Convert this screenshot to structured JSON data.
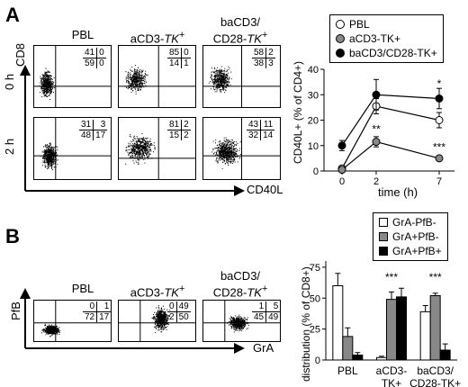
{
  "panelA": {
    "letter": "A",
    "samples": [
      "PBL",
      "aCD3-TK+",
      "baCD3/CD28-TK+"
    ],
    "sample_labels": {
      "pbl": "PBL",
      "acd3_main": "aCD3-",
      "acd3_tk": "TK",
      "sup": "+",
      "bacd3_line1": "baCD3/",
      "bacd3_line2": "CD28-",
      "bacd3_tk": "TK"
    },
    "rows": [
      "0 h",
      "2 h"
    ],
    "y_axis": "CD8",
    "x_axis": "CD40L",
    "quadrants": {
      "0h": [
        {
          "ul": "41",
          "ur": "0",
          "ll": "59",
          "lr": "0"
        },
        {
          "ul": "85",
          "ur": "0",
          "ll": "14",
          "lr": "1"
        },
        {
          "ul": "58",
          "ur": "2",
          "ll": "38",
          "lr": "3"
        }
      ],
      "2h": [
        {
          "ul": "31",
          "ur": "3",
          "ll": "48",
          "lr": "17"
        },
        {
          "ul": "81",
          "ur": "2",
          "ll": "15",
          "lr": "2"
        },
        {
          "ul": "43",
          "ur": "11",
          "ll": "32",
          "lr": "14"
        }
      ]
    }
  },
  "panelB": {
    "letter": "B",
    "y_axis": "PfB",
    "x_axis": "GrA",
    "quadrants": [
      {
        "ul": "0",
        "ur": "1",
        "ll": "72",
        "lr": "17"
      },
      {
        "ul": "0",
        "ur": "49",
        "ll": "2",
        "lr": "50"
      },
      {
        "ul": "1",
        "ur": "5",
        "ll": "45",
        "lr": "49"
      }
    ]
  },
  "chart_data": [
    {
      "type": "line",
      "ylabel": "CD40L+ (% of CD4+)",
      "xlabel": "time (h)",
      "x": [
        0,
        2,
        7
      ],
      "x_ticks": [
        "0",
        "2",
        "7"
      ],
      "ylim": [
        0,
        40
      ],
      "y_ticks": [
        0,
        10,
        20,
        30,
        40
      ],
      "legend": {
        "placement": "top-right",
        "entries": [
          {
            "label": "PBL",
            "fill": "#ffffff"
          },
          {
            "label": "aCD3-TK+",
            "fill": "#888888"
          },
          {
            "label": "baCD3/CD28-TK+",
            "fill": "#000000"
          }
        ]
      },
      "series": [
        {
          "name": "PBL",
          "values": [
            1,
            25.5,
            20
          ],
          "errors": [
            1,
            3,
            3
          ],
          "fill": "#ffffff"
        },
        {
          "name": "aCD3-TK+",
          "values": [
            0.5,
            11.5,
            5
          ],
          "errors": [
            0.5,
            2,
            1
          ],
          "fill": "#888888"
        },
        {
          "name": "baCD3/CD28-TK+",
          "values": [
            10,
            30,
            28.5
          ],
          "errors": [
            2,
            6,
            4
          ],
          "fill": "#000000"
        }
      ],
      "annotations": [
        {
          "x": 7,
          "y": 33,
          "text": "*"
        },
        {
          "x": 2,
          "y": 15,
          "text": "**"
        },
        {
          "x": 7,
          "y": 8,
          "text": "***"
        }
      ]
    },
    {
      "type": "bar",
      "ylabel": "distribution (% of CD8+)",
      "categories": [
        "PBL",
        "aCD3-TK+",
        "baCD3/CD28-TK+"
      ],
      "category_lines": [
        [
          "PBL"
        ],
        [
          "aCD3-",
          "TK+"
        ],
        [
          "baCD3/",
          "CD28-TK+"
        ]
      ],
      "ylim": [
        0,
        80
      ],
      "y_ticks": [
        0,
        25,
        50,
        75
      ],
      "legend": {
        "placement": "top-right",
        "entries": [
          {
            "label": "GrA-PfB-",
            "fill": "#ffffff"
          },
          {
            "label": "GrA+PfB-",
            "fill": "#888888"
          },
          {
            "label": "GrA+PfB+",
            "fill": "#000000"
          }
        ]
      },
      "series": [
        {
          "name": "GrA-PfB-",
          "values": [
            60,
            2,
            39
          ],
          "errors": [
            10,
            1,
            5
          ],
          "fill": "#ffffff"
        },
        {
          "name": "GrA+PfB-",
          "values": [
            19,
            49,
            52
          ],
          "errors": [
            7,
            6,
            2
          ],
          "fill": "#888888"
        },
        {
          "name": "GrA+PfB+",
          "values": [
            4,
            51,
            8
          ],
          "errors": [
            2,
            7,
            5
          ],
          "fill": "#000000"
        }
      ],
      "annotations": [
        {
          "category": 1,
          "text": "***",
          "y": 64
        },
        {
          "category": 2,
          "text": "***",
          "y": 64
        }
      ]
    }
  ]
}
